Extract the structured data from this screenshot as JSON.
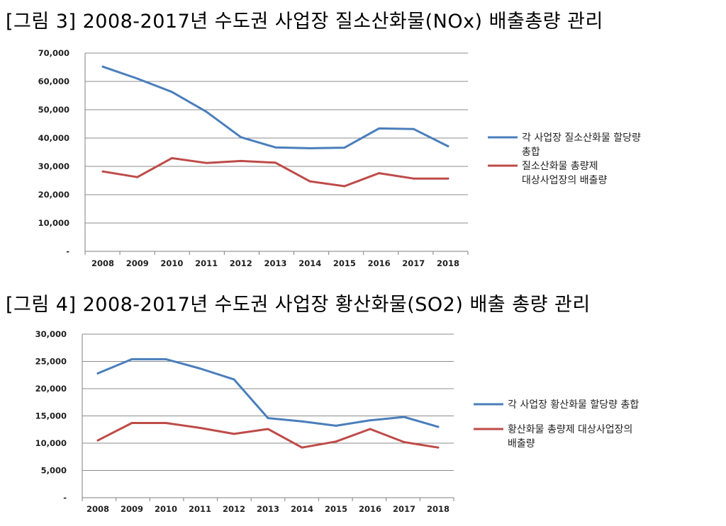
{
  "figures": [
    {
      "title": "[그림 3] 2008-2017년 수도권 사업장 질소산화물(NOx) 배출총량 관리"
    },
    {
      "title": "[그림 4] 2008-2017년 수도권 사업장 황산화물(SO2) 배출 총량 관리"
    }
  ],
  "chart_data": [
    {
      "type": "line",
      "title": "[그림 3] 2008-2017년 수도권 사업장 질소산화물(NOx) 배출총량 관리",
      "categories": [
        "2008",
        "2009",
        "2010",
        "2011",
        "2012",
        "2013",
        "2014",
        "2015",
        "2016",
        "2017",
        "2018"
      ],
      "ylim": [
        0,
        70000
      ],
      "yticks": [
        "-",
        "10,000",
        "20,000",
        "30,000",
        "40,000",
        "50,000",
        "60,000",
        "70,000"
      ],
      "grid": true,
      "legend_position": "right",
      "series": [
        {
          "name": "각 사업장 질소산화물 할당량 총합",
          "color": "#4a7ebb",
          "legend_lines": [
            "각 사업장 질소산화물 할당량",
            "총합"
          ],
          "values": [
            65200,
            61000,
            56300,
            49300,
            40300,
            36700,
            36400,
            36600,
            43400,
            43200,
            37100
          ]
        },
        {
          "name": "질소산화물 총량제 대상사업장의 배출량",
          "color": "#be4b48",
          "legend_lines": [
            "질소산화물 총량제",
            "대상사업장의 배출량"
          ],
          "values": [
            28200,
            26200,
            32900,
            31200,
            31900,
            31300,
            24700,
            23000,
            27600,
            25700,
            25700
          ]
        }
      ]
    },
    {
      "type": "line",
      "title": "[그림 4] 2008-2017년 수도권 사업장 황산화물(SO2) 배출 총량 관리",
      "categories": [
        "2008",
        "2009",
        "2010",
        "2011",
        "2012",
        "2013",
        "2014",
        "2015",
        "2016",
        "2017",
        "2018"
      ],
      "ylim": [
        0,
        30000
      ],
      "yticks": [
        "-",
        "5,000",
        "10,000",
        "15,000",
        "20,000",
        "25,000",
        "30,000"
      ],
      "grid": true,
      "legend_position": "right",
      "series": [
        {
          "name": "각 사업장 황산화물 할당량 총합",
          "color": "#4a7ebb",
          "legend_lines": [
            "각 사업장 황산화물 할당량 총합"
          ],
          "values": [
            22800,
            25400,
            25400,
            23700,
            21700,
            14600,
            14000,
            13200,
            14200,
            14800,
            13000
          ]
        },
        {
          "name": "황산화물 총량제 대상사업장의 배출량",
          "color": "#be4b48",
          "legend_lines": [
            "황산화물 총량제 대상사업장의",
            "배출량"
          ],
          "values": [
            10500,
            13700,
            13700,
            12800,
            11700,
            12600,
            9200,
            10300,
            12600,
            10200,
            9200
          ]
        }
      ]
    }
  ]
}
